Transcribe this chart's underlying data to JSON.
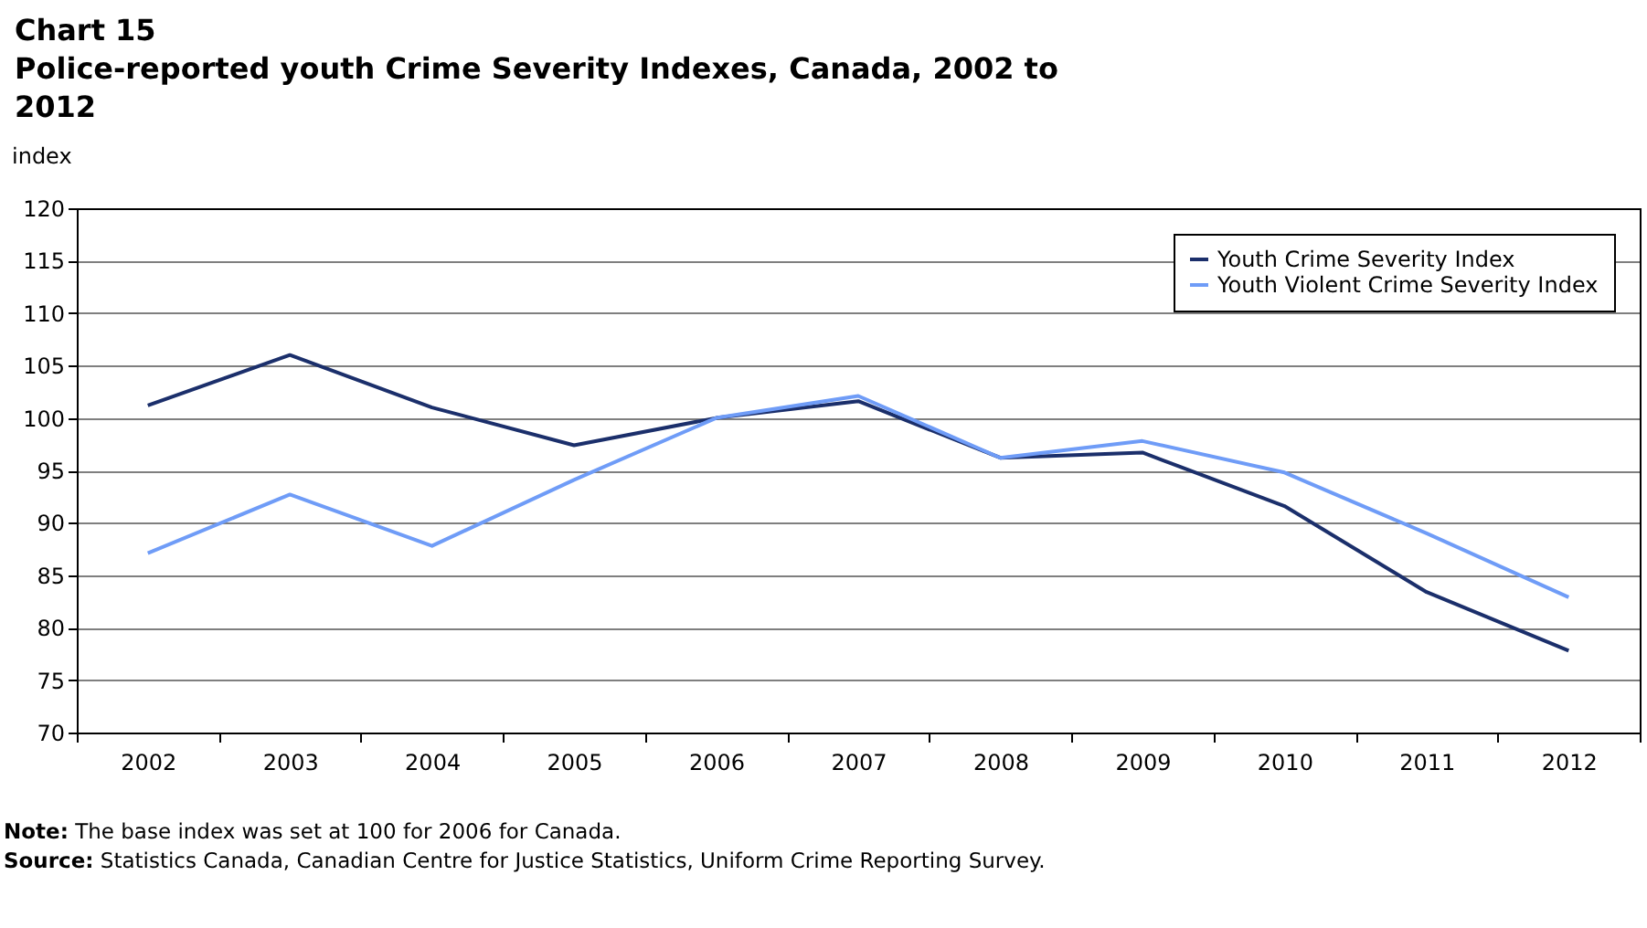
{
  "chart_data": {
    "type": "line",
    "title": "Chart 15",
    "subtitle": "Police-reported youth Crime Severity Indexes, Canada, 2002 to 2012",
    "ylabel": "index",
    "categories": [
      "2002",
      "2003",
      "2004",
      "2005",
      "2006",
      "2007",
      "2008",
      "2009",
      "2010",
      "2011",
      "2012"
    ],
    "series": [
      {
        "name": "Youth Crime Severity Index",
        "color": "#1b2f6b",
        "values": [
          101.2,
          106,
          101,
          97.4,
          100,
          101.6,
          96.2,
          96.7,
          91.6,
          83.4,
          77.8
        ]
      },
      {
        "name": "Youth Violent Crime Severity Index",
        "color": "#6f9cf7",
        "values": [
          87.1,
          92.7,
          87.8,
          94.1,
          100,
          102.1,
          96.2,
          97.8,
          94.8,
          89,
          82.9
        ]
      }
    ],
    "ylim": [
      70,
      120
    ],
    "yticks": [
      70,
      75,
      80,
      85,
      90,
      95,
      100,
      105,
      110,
      115,
      120
    ],
    "grid": "y",
    "legend": "top right",
    "marker": "none",
    "line_style": "solid",
    "annotations": [
      "Note: The base index was set at 100 for 2006 for Canada.",
      "Source: Statistics Canada, Canadian Centre for Justice Statistics, Uniform Crime Reporting Survey."
    ]
  }
}
